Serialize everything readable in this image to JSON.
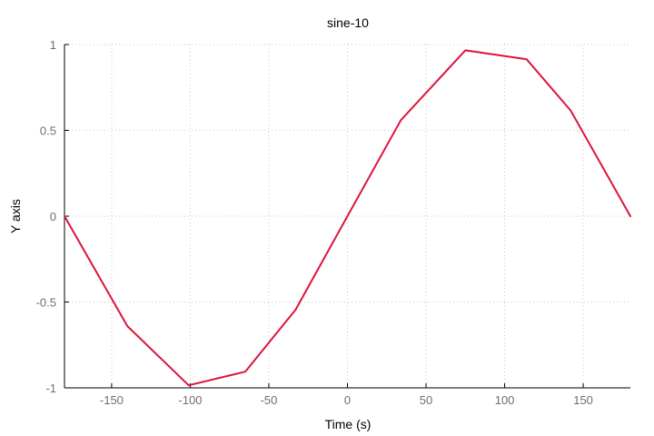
{
  "chart_data": {
    "type": "line",
    "title": "sine-10",
    "xlabel": "Time (s)",
    "ylabel": "Y axis",
    "xlim": [
      -180,
      180
    ],
    "ylim": [
      -1,
      1
    ],
    "xticks": [
      -150,
      -100,
      -50,
      0,
      50,
      100,
      150
    ],
    "xtick_labels": [
      "-150",
      "-100",
      "-50",
      "0",
      "50",
      "100",
      "150"
    ],
    "yticks": [
      -1,
      -0.5,
      0,
      0.5,
      1
    ],
    "ytick_labels": [
      "-1",
      "-0.5",
      "0",
      "0.5",
      "1"
    ],
    "grid": true,
    "legend": "none",
    "series": [
      {
        "color": "#dc143c",
        "x": [
          -180,
          -140,
          -101,
          -65,
          -33,
          0,
          34,
          75,
          114,
          142,
          180
        ],
        "y": [
          0,
          -0.64,
          -0.985,
          -0.906,
          -0.545,
          0,
          0.559,
          0.966,
          0.914,
          0.616,
          0
        ]
      }
    ]
  }
}
